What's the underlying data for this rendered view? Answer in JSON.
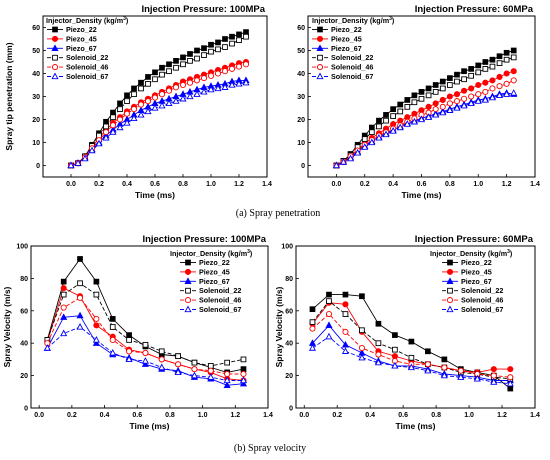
{
  "captions": [
    "(a) Spray penetration",
    "(b) Spray velocity"
  ],
  "chart_data": [
    {
      "type": "line",
      "title": "Injection Pressure: 100MPa",
      "xlabel": "Time (ms)",
      "ylabel": "Spray tip penetration (mm)",
      "xlim": [
        -0.2,
        1.4
      ],
      "ylim": [
        -5,
        65
      ],
      "xticks": [
        "0.0",
        "0.2",
        "0.4",
        "0.6",
        "0.8",
        "1.0",
        "1.2",
        "1.4"
      ],
      "yticks": [
        "0",
        "10",
        "20",
        "30",
        "40",
        "50",
        "60"
      ],
      "legend_title": "Injector_Density (kg/m",
      "legend_title_sup": "3",
      "legend_placement": "top-left",
      "x": [
        0,
        0.05,
        0.1,
        0.15,
        0.2,
        0.25,
        0.3,
        0.35,
        0.4,
        0.45,
        0.5,
        0.55,
        0.6,
        0.65,
        0.7,
        0.75,
        0.8,
        0.85,
        0.9,
        0.95,
        1.0,
        1.05,
        1.1,
        1.15,
        1.2,
        1.25
      ],
      "series": [
        {
          "name": "Piezo_22",
          "color": "#000000",
          "marker": "square",
          "filled": true,
          "dash": "",
          "values": [
            0,
            1,
            4,
            9,
            14,
            19,
            23,
            27,
            30.5,
            33.5,
            36,
            38.5,
            40.5,
            42.5,
            44,
            45.5,
            47,
            48.5,
            50,
            51,
            52.5,
            53.5,
            55,
            56,
            57,
            58
          ]
        },
        {
          "name": "Piezo_45",
          "color": "#ff0000",
          "marker": "circle",
          "filled": true,
          "dash": "",
          "values": [
            0,
            1,
            4,
            8,
            12,
            15.5,
            18.5,
            21,
            23.5,
            25.5,
            27.5,
            29,
            30.5,
            32,
            33.5,
            35,
            36.5,
            37.5,
            38.5,
            39.5,
            40.5,
            41.5,
            42.5,
            43.5,
            44.5,
            45
          ]
        },
        {
          "name": "Piezo_67",
          "color": "#0000ff",
          "marker": "triangle",
          "filled": true,
          "dash": "",
          "values": [
            0,
            1,
            3.5,
            7,
            10,
            13,
            15.5,
            18,
            20,
            22,
            24,
            25.5,
            27,
            28,
            29,
            30,
            31,
            32,
            33,
            34,
            34.5,
            35,
            35.5,
            36.5,
            37,
            37
          ]
        },
        {
          "name": "Solenoid_22",
          "color": "#000000",
          "marker": "square",
          "filled": false,
          "dash": "4,2",
          "values": [
            0,
            1,
            4,
            8.5,
            13,
            17,
            21,
            24.5,
            28,
            31,
            33.5,
            35.5,
            37.5,
            39.5,
            41,
            42.5,
            44,
            45.5,
            46.5,
            48,
            49.5,
            50.5,
            51.5,
            53,
            54.5,
            56
          ]
        },
        {
          "name": "Solenoid_46",
          "color": "#ff0000",
          "marker": "circle",
          "filled": false,
          "dash": "4,2",
          "values": [
            0,
            1,
            3.5,
            7.5,
            11,
            14.5,
            17.5,
            20,
            22.5,
            24.5,
            26.5,
            28,
            29.5,
            31,
            32.5,
            34,
            35,
            36,
            37,
            38,
            39,
            40,
            41,
            42,
            43,
            44
          ]
        },
        {
          "name": "Solenoid_67",
          "color": "#0000ff",
          "marker": "triangle",
          "filled": false,
          "dash": "4,2",
          "values": [
            0,
            1,
            3,
            6.5,
            9.5,
            12,
            14.5,
            16.5,
            18.5,
            20.5,
            22,
            23.5,
            25,
            26,
            27,
            28,
            29,
            30,
            31,
            32,
            33,
            33.5,
            34,
            35,
            35.5,
            36
          ]
        }
      ]
    },
    {
      "type": "line",
      "title": "Injection Pressure: 60MPa",
      "xlabel": "Time (ms)",
      "ylabel": "",
      "xlim": [
        -0.2,
        1.4
      ],
      "ylim": [
        -5,
        65
      ],
      "xticks": [
        "0.0",
        "0.2",
        "0.4",
        "0.6",
        "0.8",
        "1.0",
        "1.2",
        "1.4"
      ],
      "yticks": [
        "0",
        "10",
        "20",
        "30",
        "40",
        "50",
        "60"
      ],
      "legend_title": "Injector_Density (kg/m",
      "legend_title_sup": "3",
      "legend_placement": "top-left",
      "x": [
        0,
        0.05,
        0.1,
        0.15,
        0.2,
        0.25,
        0.3,
        0.35,
        0.4,
        0.45,
        0.5,
        0.55,
        0.6,
        0.65,
        0.7,
        0.75,
        0.8,
        0.85,
        0.9,
        0.95,
        1.0,
        1.05,
        1.1,
        1.15,
        1.2,
        1.25
      ],
      "series": [
        {
          "name": "Piezo_22",
          "color": "#000000",
          "marker": "square",
          "filled": true,
          "dash": "",
          "values": [
            0,
            2,
            5,
            9,
            13,
            16.5,
            19.5,
            22,
            24.5,
            26.5,
            28.5,
            30.5,
            32,
            33.5,
            35,
            36.5,
            38,
            39.5,
            41,
            42,
            43.5,
            45,
            46,
            47.5,
            49,
            50
          ]
        },
        {
          "name": "Piezo_45",
          "color": "#ff0000",
          "marker": "circle",
          "filled": true,
          "dash": "",
          "values": [
            0,
            2,
            4,
            7,
            9.5,
            12,
            14,
            16,
            18,
            19.5,
            21,
            22.5,
            24,
            25.5,
            27,
            28.5,
            30,
            31,
            32.5,
            33.5,
            35,
            36,
            37,
            38.5,
            40,
            41
          ]
        },
        {
          "name": "Piezo_67",
          "color": "#0000ff",
          "marker": "triangle",
          "filled": true,
          "dash": "",
          "values": [
            0,
            1.5,
            3.5,
            6,
            8.5,
            10.5,
            12.5,
            14,
            15.5,
            17,
            18.5,
            19.5,
            20.5,
            21.5,
            22.5,
            23.5,
            24.5,
            25.5,
            26.5,
            27.5,
            28.5,
            29,
            30,
            31,
            31.5,
            31
          ]
        },
        {
          "name": "Solenoid_22",
          "color": "#000000",
          "marker": "square",
          "filled": false,
          "dash": "4,2",
          "values": [
            0,
            2,
            4.5,
            8,
            11.5,
            14.5,
            17,
            19.5,
            21.5,
            23.5,
            25.5,
            27.5,
            29,
            30.5,
            32,
            33.5,
            35,
            36.5,
            37.5,
            39,
            40.5,
            42,
            43,
            44.5,
            46,
            47
          ]
        },
        {
          "name": "Solenoid_46",
          "color": "#ff0000",
          "marker": "circle",
          "filled": false,
          "dash": "4,2",
          "values": [
            0,
            1.5,
            4,
            6.5,
            9,
            11,
            13,
            14.5,
            16,
            17.5,
            19,
            20.5,
            22,
            23,
            24.5,
            25.5,
            27,
            28,
            29,
            30,
            31,
            32,
            33.5,
            34.5,
            35.5,
            37
          ]
        },
        {
          "name": "Solenoid_67",
          "color": "#0000ff",
          "marker": "triangle",
          "filled": false,
          "dash": "4,2",
          "values": [
            0,
            1.5,
            3,
            5.5,
            8,
            10,
            12,
            13.5,
            15,
            16.5,
            18,
            19,
            20,
            21,
            22,
            23,
            24,
            25,
            26,
            27,
            28,
            28.5,
            29.5,
            30.5,
            31,
            31.5
          ]
        }
      ]
    },
    {
      "type": "line",
      "title": "Injection Pressure: 100MPa",
      "xlabel": "Time (ms)",
      "ylabel": "Spray Velocity (m/s)",
      "xlim": [
        -0.05,
        1.4
      ],
      "ylim": [
        0,
        100
      ],
      "xticks": [
        "0.0",
        "0.2",
        "0.4",
        "0.6",
        "0.8",
        "1.0",
        "1.2",
        "1.4"
      ],
      "yticks": [
        "0",
        "20",
        "40",
        "60",
        "80",
        "100"
      ],
      "legend_title": "Injector_Density (kg/m",
      "legend_title_sup": "3",
      "legend_placement": "top-right",
      "x": [
        0.05,
        0.15,
        0.25,
        0.35,
        0.45,
        0.55,
        0.65,
        0.75,
        0.85,
        0.95,
        1.05,
        1.15,
        1.25
      ],
      "series": [
        {
          "name": "Piezo_22",
          "color": "#000000",
          "marker": "square",
          "filled": true,
          "dash": "",
          "values": [
            42,
            78,
            92,
            78,
            55,
            45,
            38,
            33,
            32,
            28,
            25,
            22,
            24
          ]
        },
        {
          "name": "Piezo_45",
          "color": "#ff0000",
          "marker": "circle",
          "filled": true,
          "dash": "",
          "values": [
            41,
            74,
            69,
            51,
            44,
            36,
            34,
            30,
            27,
            24,
            22,
            18,
            17
          ]
        },
        {
          "name": "Piezo_67",
          "color": "#0000ff",
          "marker": "triangle",
          "filled": true,
          "dash": "",
          "values": [
            37,
            56,
            57,
            40,
            33,
            31,
            27,
            24,
            23,
            19,
            18,
            14,
            15
          ]
        },
        {
          "name": "Solenoid_22",
          "color": "#000000",
          "marker": "square",
          "filled": false,
          "dash": "4,2",
          "values": [
            42,
            70,
            77,
            70,
            50,
            42,
            39,
            35,
            32,
            28,
            26,
            28,
            30
          ]
        },
        {
          "name": "Solenoid_46",
          "color": "#ff0000",
          "marker": "circle",
          "filled": false,
          "dash": "4,2",
          "values": [
            40,
            62,
            68,
            55,
            42,
            35,
            34,
            30,
            27,
            24,
            23,
            21,
            21
          ]
        },
        {
          "name": "Solenoid_67",
          "color": "#0000ff",
          "marker": "triangle",
          "filled": false,
          "dash": "4,2",
          "values": [
            37,
            46,
            50,
            42,
            34,
            30,
            29,
            25,
            22,
            20,
            19,
            17,
            17
          ]
        }
      ]
    },
    {
      "type": "line",
      "title": "Injection Pressure: 60MPa",
      "xlabel": "Time (ms)",
      "ylabel": "Spray Velocity (m/s)",
      "xlim": [
        -0.05,
        1.4
      ],
      "ylim": [
        0,
        100
      ],
      "xticks": [
        "0.0",
        "0.2",
        "0.4",
        "0.6",
        "0.8",
        "1.0",
        "1.2",
        "1.4"
      ],
      "yticks": [
        "0",
        "20",
        "40",
        "60",
        "80",
        "100"
      ],
      "legend_title": "Injector_Density (kg/m",
      "legend_title_sup": "3",
      "legend_placement": "top-right",
      "x": [
        0.05,
        0.15,
        0.25,
        0.35,
        0.45,
        0.55,
        0.65,
        0.75,
        0.85,
        0.95,
        1.05,
        1.15,
        1.25
      ],
      "series": [
        {
          "name": "Piezo_22",
          "color": "#000000",
          "marker": "square",
          "filled": true,
          "dash": "",
          "values": [
            61,
            70,
            70,
            69,
            52,
            45,
            41,
            35,
            30,
            24,
            22,
            20,
            12
          ]
        },
        {
          "name": "Piezo_45",
          "color": "#ff0000",
          "marker": "circle",
          "filled": true,
          "dash": "",
          "values": [
            52,
            65,
            64,
            47,
            35,
            32,
            29,
            27,
            25,
            23,
            22,
            24,
            24
          ]
        },
        {
          "name": "Piezo_67",
          "color": "#0000ff",
          "marker": "triangle",
          "filled": true,
          "dash": "",
          "values": [
            40,
            51,
            39,
            34,
            29,
            26,
            26,
            24,
            21,
            20,
            19,
            17,
            17
          ]
        },
        {
          "name": "Solenoid_22",
          "color": "#000000",
          "marker": "square",
          "filled": false,
          "dash": "4,2",
          "values": [
            53,
            66,
            58,
            48,
            40,
            36,
            31,
            27,
            25,
            22,
            21,
            19,
            18
          ]
        },
        {
          "name": "Solenoid_46",
          "color": "#ff0000",
          "marker": "circle",
          "filled": false,
          "dash": "4,2",
          "values": [
            49,
            58,
            47,
            37,
            33,
            29,
            27,
            27,
            25,
            23,
            21,
            20,
            19
          ]
        },
        {
          "name": "Solenoid_67",
          "color": "#0000ff",
          "marker": "triangle",
          "filled": false,
          "dash": "4,2",
          "values": [
            37,
            44,
            35,
            31,
            28,
            26,
            25,
            23,
            20,
            19,
            18,
            16,
            15
          ]
        }
      ]
    }
  ]
}
